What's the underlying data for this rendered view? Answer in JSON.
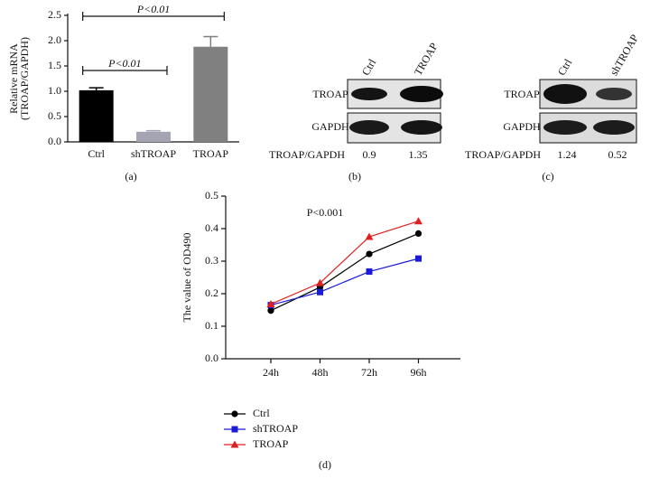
{
  "chart_data": [
    {
      "type": "bar",
      "ylabel": [
        "Relative mRNA",
        "(TROAP/GAPDH)"
      ],
      "categories": [
        "Ctrl",
        "shTROAP",
        "TROAP"
      ],
      "values": [
        1.02,
        0.2,
        1.88
      ],
      "errors": [
        0.05,
        0.02,
        0.2
      ],
      "colors": [
        "#000000",
        "#a4a4b2",
        "#808080"
      ],
      "ylim": [
        0,
        2.5
      ],
      "yticks": [
        {
          "value": 0,
          "label": "0.0"
        },
        0.5,
        {
          "value": 1,
          "label": "1.0"
        },
        1.5,
        {
          "value": 2,
          "label": "2.0"
        },
        2.5
      ],
      "annotations": [
        "P<0.01",
        "P<0.01"
      ],
      "panel": "(a)"
    },
    {
      "type": "line",
      "ylabel": "The value of OD490",
      "annotation": "P<0.001",
      "categories": [
        "24h",
        "48h",
        "72h",
        "96h"
      ],
      "series": [
        {
          "name": "Ctrl",
          "color": "#000000",
          "marker": "circle",
          "values": [
            0.148,
            0.22,
            0.322,
            0.385
          ]
        },
        {
          "name": "shTROAP",
          "color": "#1a1ad8",
          "marker": "square",
          "values": [
            0.165,
            0.205,
            0.268,
            0.308
          ]
        },
        {
          "name": "TROAP",
          "color": "#e02020",
          "marker": "triangle",
          "values": [
            0.168,
            0.233,
            0.375,
            0.423
          ]
        }
      ],
      "ylim": [
        0,
        0.5
      ],
      "yticks": [
        {
          "value": 0,
          "label": "0.0"
        },
        0.1,
        0.2,
        0.3,
        0.4,
        0.5
      ],
      "panel": "(d)"
    }
  ],
  "blots": [
    {
      "columns": [
        "Ctrl",
        "TROAP"
      ],
      "rows": [
        "TROAP",
        "GAPDH"
      ],
      "ratio_label": "TROAP/GAPDH",
      "ratios": [
        "0.9",
        "1.35"
      ],
      "panel": "(b)"
    },
    {
      "columns": [
        "Ctrl",
        "shTROAP"
      ],
      "rows": [
        "TROAP",
        "GAPDH"
      ],
      "ratio_label": "TROAP/GAPDH",
      "ratios": [
        "1.24",
        "0.52"
      ],
      "panel": "(c)"
    }
  ]
}
